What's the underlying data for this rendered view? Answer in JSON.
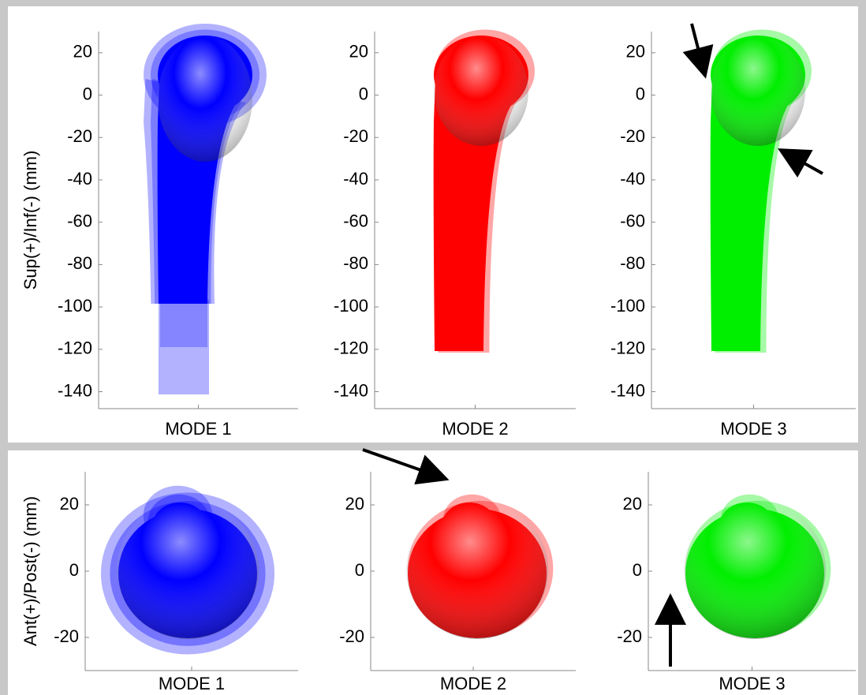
{
  "chart_data": [
    {
      "type": "render",
      "color": "#0000ff",
      "ylabel": "Sup(+)/Inf(-) (mm)",
      "xlabel": "MODE 1",
      "ylim": [
        -148,
        30
      ],
      "yticks": [
        20,
        0,
        -20,
        -40,
        -60,
        -80,
        -100,
        -120,
        -140
      ]
    },
    {
      "type": "render",
      "color": "#ff0000",
      "xlabel": "MODE 2",
      "ylim": [
        -148,
        30
      ],
      "yticks": [
        20,
        0,
        -20,
        -40,
        -60,
        -80,
        -100,
        -120,
        -140
      ]
    },
    {
      "type": "render",
      "color": "#00ee00",
      "xlabel": "MODE 3",
      "ylim": [
        -148,
        30
      ],
      "yticks": [
        20,
        0,
        -20,
        -40,
        -60,
        -80,
        -100,
        -120,
        -140
      ]
    },
    {
      "type": "render",
      "color": "#0000ff",
      "ylabel": "Ant(+)/Post(-) (mm)",
      "xlabel": "MODE 1",
      "ylim": [
        -30,
        30
      ],
      "yticks": [
        20,
        0,
        -20
      ]
    },
    {
      "type": "render",
      "color": "#ff0000",
      "xlabel": "MODE 2",
      "ylim": [
        -30,
        30
      ],
      "yticks": [
        20,
        0,
        -20
      ]
    },
    {
      "type": "render",
      "color": "#00ee00",
      "xlabel": "MODE 3",
      "ylim": [
        -30,
        30
      ],
      "yticks": [
        20,
        0,
        -20
      ]
    }
  ]
}
